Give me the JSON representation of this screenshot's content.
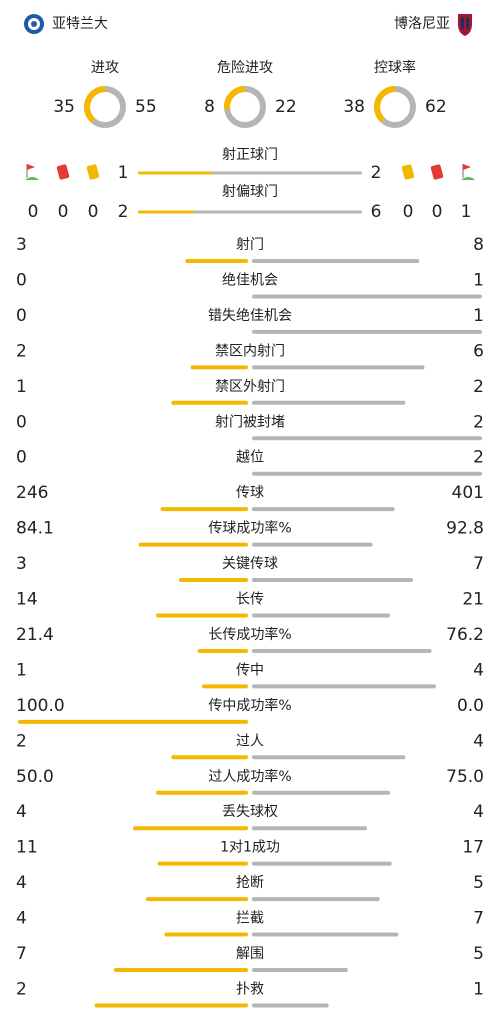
{
  "header": {
    "home": "亚特兰大",
    "away": "博洛尼亚"
  },
  "pressure": [
    {
      "label": "进攻",
      "home": 35,
      "away": 55
    },
    {
      "label": "危险进攻",
      "home": 8,
      "away": 22
    },
    {
      "label": "控球率",
      "home": 38,
      "away": 62
    }
  ],
  "shots": [
    {
      "label": "射正球门",
      "home": 1,
      "away": 2
    },
    {
      "label": "射偏球门",
      "home": 2,
      "away": 6
    }
  ],
  "events": {
    "home": {
      "corners": 0,
      "red": 0,
      "yellow": 0
    },
    "away": {
      "yellow": 0,
      "red": 0,
      "corners": 1
    }
  },
  "stats": [
    {
      "label": "射门",
      "home": "3",
      "away": "8"
    },
    {
      "label": "绝佳机会",
      "home": "0",
      "away": "1"
    },
    {
      "label": "错失绝佳机会",
      "home": "0",
      "away": "1"
    },
    {
      "label": "禁区内射门",
      "home": "2",
      "away": "6"
    },
    {
      "label": "禁区外射门",
      "home": "1",
      "away": "2"
    },
    {
      "label": "射门被封堵",
      "home": "0",
      "away": "2"
    },
    {
      "label": "越位",
      "home": "0",
      "away": "2"
    },
    {
      "label": "传球",
      "home": "246",
      "away": "401"
    },
    {
      "label": "传球成功率%",
      "home": "84.1",
      "away": "92.8"
    },
    {
      "label": "关键传球",
      "home": "3",
      "away": "7"
    },
    {
      "label": "长传",
      "home": "14",
      "away": "21"
    },
    {
      "label": "长传成功率%",
      "home": "21.4",
      "away": "76.2"
    },
    {
      "label": "传中",
      "home": "1",
      "away": "4"
    },
    {
      "label": "传中成功率%",
      "home": "100.0",
      "away": "0.0"
    },
    {
      "label": "过人",
      "home": "2",
      "away": "4"
    },
    {
      "label": "过人成功率%",
      "home": "50.0",
      "away": "75.0"
    },
    {
      "label": "丢失球权",
      "home": "4",
      "away": "4"
    },
    {
      "label": "1对1成功",
      "home": "11",
      "away": "17"
    },
    {
      "label": "抢断",
      "home": "4",
      "away": "5"
    },
    {
      "label": "拦截",
      "home": "4",
      "away": "7"
    },
    {
      "label": "解围",
      "home": "7",
      "away": "5"
    },
    {
      "label": "扑救",
      "home": "2",
      "away": "1"
    }
  ]
}
